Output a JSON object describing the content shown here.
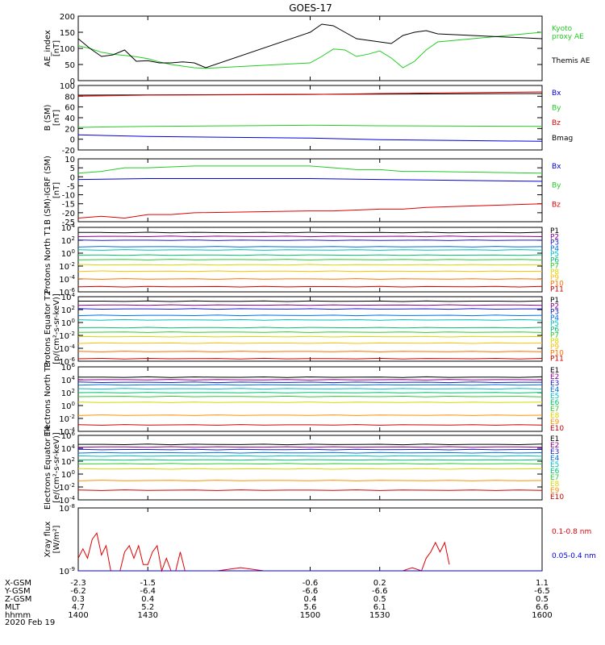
{
  "title": "GOES-17",
  "date_label": "2020 Feb 19",
  "colors": {
    "black": "#000000",
    "red": "#e00000",
    "green": "#22cc22",
    "blue": "#0000dd",
    "P": [
      "#000000",
      "#8b008b",
      "#1a1ad0",
      "#0070e0",
      "#00c0c0",
      "#00c070",
      "#30cc30",
      "#d8d800",
      "#ffc000",
      "#ff7000",
      "#d00000"
    ],
    "E": [
      "#000000",
      "#8b008b",
      "#1a1ad0",
      "#0070e0",
      "#00c0c0",
      "#00c070",
      "#30cc30",
      "#d8d800",
      "#ff9000",
      "#d00000",
      "#b00000"
    ]
  },
  "x_axis": {
    "rows": [
      {
        "label": "X-GSM",
        "values": [
          "-2.3",
          "-1.5",
          "-0.6",
          "0.2",
          "1.1"
        ]
      },
      {
        "label": "Y-GSM",
        "values": [
          "-6.2",
          "-6.4",
          "-6.6",
          "-6.6",
          "-6.5"
        ]
      },
      {
        "label": "Z-GSM",
        "values": [
          "0.3",
          "0.4",
          "0.4",
          "0.5",
          "0.5"
        ]
      },
      {
        "label": "MLT",
        "values": [
          "4.7",
          "5.2",
          "5.6",
          "6.1",
          "6.6"
        ]
      },
      {
        "label": "hhmm",
        "values": [
          "1400",
          "1430",
          "1500",
          "1530",
          "1600"
        ]
      }
    ]
  },
  "chart_data": [
    {
      "type": "line",
      "ylabel": "AE_index [nT]",
      "ylim": [
        0,
        200
      ],
      "yticks": [
        "0",
        "50",
        "100",
        "150",
        "200"
      ],
      "legend": [
        "Kyoto",
        "proxy AE",
        "Themis AE"
      ],
      "series": [
        {
          "name": "Kyoto proxy AE",
          "color": "green",
          "x": [
            1400,
            1405,
            1410,
            1415,
            1420,
            1425,
            1430,
            1435,
            1440,
            1445,
            1450,
            1455,
            1500,
            1505,
            1510,
            1515,
            1520,
            1525,
            1530,
            1535,
            1540,
            1545,
            1550,
            1555,
            1600
          ],
          "y": [
            108,
            100,
            88,
            82,
            78,
            74,
            68,
            58,
            50,
            45,
            40,
            38,
            55,
            75,
            98,
            95,
            75,
            82,
            92,
            70,
            40,
            60,
            95,
            120,
            150
          ]
        },
        {
          "name": "Themis AE",
          "color": "black",
          "x": [
            1400,
            1405,
            1410,
            1415,
            1420,
            1425,
            1430,
            1435,
            1440,
            1445,
            1450,
            1455,
            1500,
            1505,
            1510,
            1515,
            1520,
            1525,
            1530,
            1535,
            1540,
            1545,
            1550,
            1555,
            1600
          ],
          "y": [
            130,
            100,
            75,
            80,
            95,
            60,
            62,
            55,
            55,
            58,
            55,
            40,
            150,
            175,
            170,
            150,
            130,
            125,
            120,
            115,
            140,
            150,
            155,
            145,
            130
          ]
        }
      ]
    },
    {
      "type": "line",
      "ylabel": "B (SM) [nT]",
      "ylim": [
        -20,
        100
      ],
      "yticks": [
        "-20",
        "0",
        "20",
        "40",
        "60",
        "80",
        "100"
      ],
      "legend": [
        "Bx",
        "By",
        "Bz",
        "Bmag"
      ],
      "series": [
        {
          "name": "Bmag",
          "color": "black",
          "x": [
            1400,
            1600
          ],
          "y": [
            82,
            85
          ]
        },
        {
          "name": "Bz",
          "color": "red",
          "x": [
            1400,
            1430,
            1500,
            1530,
            1600
          ],
          "y": [
            80,
            82,
            83,
            85,
            88
          ]
        },
        {
          "name": "By",
          "color": "green",
          "x": [
            1400,
            1430,
            1500,
            1530,
            1600
          ],
          "y": [
            22,
            24,
            26,
            25,
            24
          ]
        },
        {
          "name": "Bx",
          "color": "blue",
          "x": [
            1400,
            1430,
            1500,
            1530,
            1600
          ],
          "y": [
            8,
            5,
            2,
            -1,
            -4
          ]
        }
      ]
    },
    {
      "type": "line",
      "ylabel": "B (SM)-IGRF (SM) [nT]",
      "ylim": [
        -25,
        10
      ],
      "yticks": [
        "-25",
        "-20",
        "-15",
        "-10",
        "-5",
        "0",
        "5",
        "10"
      ],
      "legend": [
        "Bx",
        "By",
        "Bz"
      ],
      "series": [
        {
          "name": "By",
          "color": "green",
          "x": [
            1400,
            1410,
            1420,
            1430,
            1440,
            1450,
            1500,
            1510,
            1520,
            1530,
            1540,
            1550,
            1600
          ],
          "y": [
            2,
            3,
            5,
            5,
            5.5,
            6,
            6,
            5,
            4,
            4,
            3,
            3,
            2
          ]
        },
        {
          "name": "Bx",
          "color": "blue",
          "x": [
            1400,
            1430,
            1500,
            1530,
            1600
          ],
          "y": [
            -1.5,
            -1,
            -1,
            -1.5,
            -2.5
          ]
        },
        {
          "name": "Bz",
          "color": "red",
          "x": [
            1400,
            1410,
            1420,
            1430,
            1440,
            1450,
            1500,
            1510,
            1520,
            1530,
            1540,
            1550,
            1600
          ],
          "y": [
            -23,
            -22,
            -23,
            -21,
            -21,
            -20,
            -19,
            -19,
            -18.5,
            -18,
            -18,
            -17,
            -15
          ]
        }
      ]
    },
    {
      "type": "line",
      "ylabel": "Protons North T1",
      "log": true,
      "ylim": [
        -6,
        4
      ],
      "yticks": [
        "10^4",
        "10^2",
        "10^0",
        "10^-2",
        "10^-4",
        "10^-6"
      ],
      "legend": [
        "P1",
        "P2",
        "P3",
        "P4",
        "P5",
        "P6",
        "P7",
        "P8",
        "P9",
        "P10",
        "P11"
      ],
      "levels": [
        3.2,
        2.6,
        2.0,
        1.0,
        0.5,
        -0.3,
        -1.0,
        -1.8,
        -2.8,
        -4.0,
        -5.2
      ]
    },
    {
      "type": "line",
      "ylabel": "Protons Equator T2 [p/(cm²-s-sr-keV)]",
      "log": true,
      "ylim": [
        -6,
        4
      ],
      "yticks": [
        "10^4",
        "10^2",
        "10^0",
        "10^-2",
        "10^-4",
        "10^-6"
      ],
      "legend": [
        "P1",
        "P2",
        "P3",
        "P4",
        "P5",
        "P6",
        "P7",
        "P8",
        "P9",
        "P10",
        "P11"
      ],
      "levels": [
        3.3,
        2.7,
        2.1,
        1.1,
        0.4,
        -0.8,
        -1.5,
        -2.2,
        -3.2,
        -4.5,
        -5.6
      ]
    },
    {
      "type": "line",
      "ylabel": "Electrons North T3",
      "log": true,
      "ylim": [
        -4,
        6
      ],
      "yticks": [
        "10^6",
        "10^4",
        "10^2",
        "10^0",
        "10^-2",
        "10^-4"
      ],
      "legend": [
        "E1",
        "E2",
        "E3",
        "E4",
        "E5",
        "E6",
        "E7",
        "E8",
        "E9",
        "E10"
      ],
      "levels": [
        4.4,
        4.0,
        3.6,
        3.2,
        2.6,
        2.0,
        1.4,
        0.5,
        -1.5,
        -3.0
      ]
    },
    {
      "type": "line",
      "ylabel": "Electrons Equator T4 [e/(cm²-s-sr-keV)]",
      "log": true,
      "ylim": [
        -4,
        6
      ],
      "yticks": [
        "10^6",
        "10^4",
        "10^2",
        "10^0",
        "10^-2",
        "10^-4"
      ],
      "legend": [
        "E1",
        "E2",
        "E3",
        "E4",
        "E5",
        "E6",
        "E7",
        "E8",
        "E9",
        "E10"
      ],
      "levels": [
        4.6,
        4.2,
        3.8,
        3.3,
        2.8,
        2.2,
        1.6,
        0.8,
        -1.0,
        -2.5
      ]
    },
    {
      "type": "line",
      "ylabel": "Xray flux [W/m²]",
      "log": true,
      "ylim": [
        -9,
        -8
      ],
      "yticks": [
        "10^-8",
        "10^-9"
      ],
      "legend": [
        "0.1-0.8 nm",
        "0.05-0.4 nm"
      ],
      "series": [
        {
          "name": "0.1-0.8 nm",
          "color": "red",
          "x": [
            1400,
            1402,
            1404,
            1406,
            1408,
            1410,
            1412,
            1414,
            1416,
            1418,
            1420,
            1422,
            1424,
            1426,
            1428,
            1430,
            1432,
            1434,
            1436,
            1438,
            1440,
            1442,
            1444,
            1446,
            1448,
            1450,
            1460,
            1470,
            1480,
            1490,
            1500,
            1510,
            1520,
            1530,
            1540,
            1544,
            1548,
            1550,
            1552,
            1554,
            1556,
            1558,
            1560
          ],
          "y": [
            -8.8,
            -8.65,
            -8.8,
            -8.5,
            -8.4,
            -8.75,
            -8.6,
            -9,
            -9,
            -9,
            -8.7,
            -8.6,
            -8.8,
            -8.6,
            -8.9,
            -8.9,
            -8.7,
            -8.6,
            -9,
            -8.8,
            -9,
            -9,
            -8.7,
            -9,
            -9,
            -9,
            -9,
            -8.95,
            -9,
            -9,
            -9,
            -9,
            -9,
            -9,
            -9,
            -8.95,
            -9,
            -8.8,
            -8.7,
            -8.55,
            -8.7,
            -8.55,
            -8.9
          ]
        },
        {
          "name": "0.05-0.4 nm",
          "color": "blue",
          "x": [
            1400,
            1600
          ],
          "y": [
            -9,
            -9
          ]
        }
      ]
    }
  ]
}
